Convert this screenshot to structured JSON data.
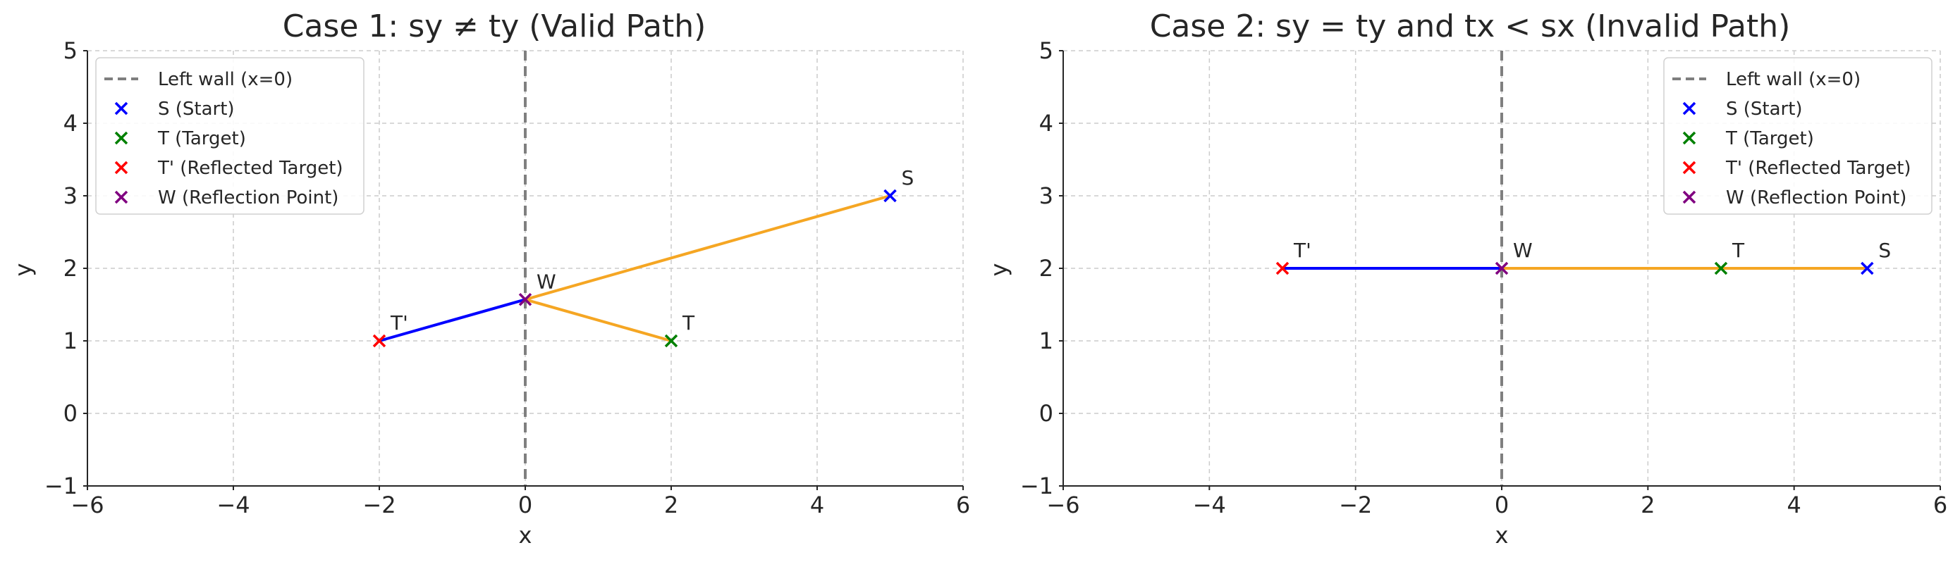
{
  "chart_data": [
    {
      "type": "line",
      "title": "Case 1: sy ≠ ty (Valid Path)",
      "xlabel": "x",
      "ylabel": "y",
      "xlim": [
        -6,
        6
      ],
      "ylim": [
        -1,
        5
      ],
      "xticks": [
        -6,
        -4,
        -2,
        0,
        2,
        4,
        6
      ],
      "yticks": [
        -1,
        0,
        1,
        2,
        3,
        4,
        5
      ],
      "xtick_labels": [
        "−6",
        "−4",
        "−2",
        "0",
        "2",
        "4",
        "6"
      ],
      "ytick_labels": [
        "−1",
        "0",
        "1",
        "2",
        "3",
        "4",
        "5"
      ],
      "grid": true,
      "legend_position": "top-left",
      "wall_x": 0,
      "legend": [
        {
          "label": "Left wall (x=0)",
          "kind": "dashed-line",
          "color": "#7f7f7f"
        },
        {
          "label": "S (Start)",
          "kind": "x-marker",
          "color": "#0000ff"
        },
        {
          "label": "T (Target)",
          "kind": "x-marker",
          "color": "#008000"
        },
        {
          "label": "T' (Reflected Target)",
          "kind": "x-marker",
          "color": "#ff0000"
        },
        {
          "label": "W (Reflection Point)",
          "kind": "x-marker",
          "color": "#800080"
        }
      ],
      "segments": [
        {
          "x": [
            -2,
            0
          ],
          "y": [
            1,
            1.57
          ],
          "color": "#0000ff"
        },
        {
          "x": [
            0,
            5
          ],
          "y": [
            1.57,
            3
          ],
          "color": "#f5a623"
        },
        {
          "x": [
            0,
            2
          ],
          "y": [
            1.57,
            1
          ],
          "color": "#f5a623"
        }
      ],
      "points": [
        {
          "label": "S",
          "x": 5,
          "y": 3,
          "color": "#0000ff"
        },
        {
          "label": "T",
          "x": 2,
          "y": 1,
          "color": "#008000"
        },
        {
          "label": "T'",
          "x": -2,
          "y": 1,
          "color": "#ff0000"
        },
        {
          "label": "W",
          "x": 0,
          "y": 1.57,
          "color": "#800080"
        }
      ]
    },
    {
      "type": "line",
      "title": "Case 2: sy = ty and tx < sx (Invalid Path)",
      "xlabel": "x",
      "ylabel": "y",
      "xlim": [
        -6,
        6
      ],
      "ylim": [
        -1,
        5
      ],
      "xticks": [
        -6,
        -4,
        -2,
        0,
        2,
        4,
        6
      ],
      "yticks": [
        -1,
        0,
        1,
        2,
        3,
        4,
        5
      ],
      "xtick_labels": [
        "−6",
        "−4",
        "−2",
        "0",
        "2",
        "4",
        "6"
      ],
      "ytick_labels": [
        "−1",
        "0",
        "1",
        "2",
        "3",
        "4",
        "5"
      ],
      "grid": true,
      "legend_position": "top-right",
      "wall_x": 0,
      "legend": [
        {
          "label": "Left wall (x=0)",
          "kind": "dashed-line",
          "color": "#7f7f7f"
        },
        {
          "label": "S (Start)",
          "kind": "x-marker",
          "color": "#0000ff"
        },
        {
          "label": "T (Target)",
          "kind": "x-marker",
          "color": "#008000"
        },
        {
          "label": "T' (Reflected Target)",
          "kind": "x-marker",
          "color": "#ff0000"
        },
        {
          "label": "W (Reflection Point)",
          "kind": "x-marker",
          "color": "#800080"
        }
      ],
      "segments": [
        {
          "x": [
            -3,
            0
          ],
          "y": [
            2,
            2
          ],
          "color": "#0000ff"
        },
        {
          "x": [
            0,
            5
          ],
          "y": [
            2,
            2
          ],
          "color": "#f5a623"
        }
      ],
      "points": [
        {
          "label": "S",
          "x": 5,
          "y": 2,
          "color": "#0000ff"
        },
        {
          "label": "T",
          "x": 3,
          "y": 2,
          "color": "#008000"
        },
        {
          "label": "T'",
          "x": -3,
          "y": 2,
          "color": "#ff0000"
        },
        {
          "label": "W",
          "x": 0,
          "y": 2,
          "color": "#800080"
        }
      ]
    }
  ]
}
